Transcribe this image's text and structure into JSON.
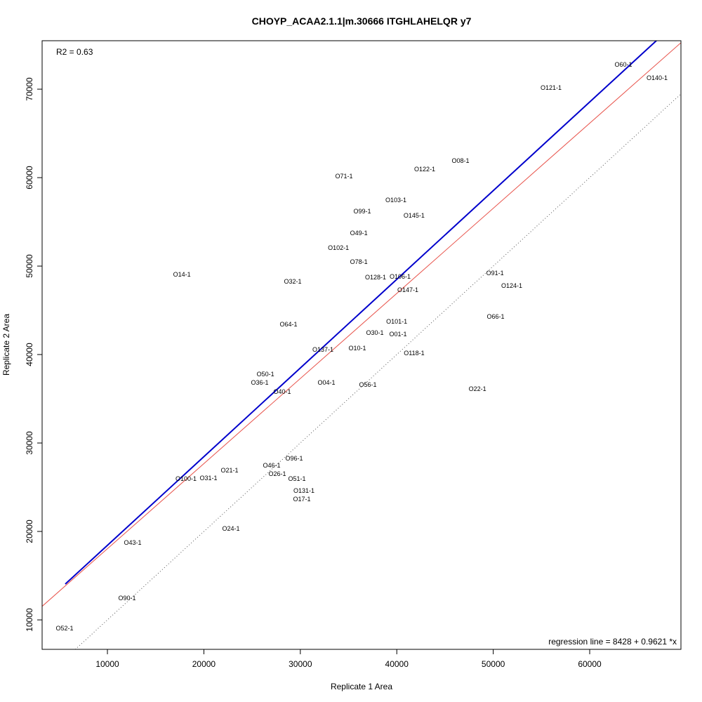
{
  "chart_data": {
    "type": "scatter",
    "title": "CHOYP_ACAA2.1.1|m.30666 ITGHLAHELQR y7",
    "xlabel": "Replicate 1 Area",
    "ylabel": "Replicate 2 Area",
    "xlim": [
      3230,
      69460
    ],
    "ylim": [
      6670,
      75480
    ],
    "xticks": [
      10000,
      20000,
      30000,
      40000,
      50000,
      60000
    ],
    "yticks": [
      10000,
      20000,
      30000,
      40000,
      50000,
      60000,
      70000
    ],
    "grid": false,
    "annotations": {
      "r2": "R2 = 0.63",
      "regression": "regression line = 8428 + 0.9621 *x"
    },
    "lines": [
      {
        "name": "regression",
        "color": "#e8524a",
        "style": "solid",
        "intercept": 8428,
        "slope": 0.9621
      },
      {
        "name": "identity",
        "color": "#555555",
        "style": "dotted",
        "intercept": 0,
        "slope": 1
      },
      {
        "name": "fit",
        "color": "#0000cc",
        "style": "solid",
        "x": [
          5630,
          66910
        ],
        "y": [
          14050,
          75480
        ]
      }
    ],
    "points": [
      {
        "label": "O60-1",
        "x": 63490,
        "y": 72780
      },
      {
        "label": "O140-1",
        "x": 66990,
        "y": 71270
      },
      {
        "label": "O121-1",
        "x": 56000,
        "y": 70160
      },
      {
        "label": "O08-1",
        "x": 46610,
        "y": 61900
      },
      {
        "label": "O122-1",
        "x": 42900,
        "y": 60950
      },
      {
        "label": "O71-1",
        "x": 34530,
        "y": 60160
      },
      {
        "label": "O103-1",
        "x": 39910,
        "y": 57460
      },
      {
        "label": "O145-1",
        "x": 41800,
        "y": 56590
      },
      {
        "label": "O99-1",
        "x": 36420,
        "y": 56190
      },
      {
        "label": "O49-1",
        "x": 36060,
        "y": 53730
      },
      {
        "label": "O102-1",
        "x": 33950,
        "y": 52060
      },
      {
        "label": "O78-1",
        "x": 36060,
        "y": 51350
      },
      {
        "label": "O128-1",
        "x": 37800,
        "y": 49600
      },
      {
        "label": "O14-1",
        "x": 17720,
        "y": 49050
      },
      {
        "label": "O106-1",
        "x": 40350,
        "y": 48810
      },
      {
        "label": "O32-1",
        "x": 29210,
        "y": 48250
      },
      {
        "label": "O91-1",
        "x": 50180,
        "y": 49210
      },
      {
        "label": "O124-1",
        "x": 51920,
        "y": 47780
      },
      {
        "label": "O147-1",
        "x": 41150,
        "y": 47300
      },
      {
        "label": "O64-1",
        "x": 28780,
        "y": 43410
      },
      {
        "label": "O66-1",
        "x": 50250,
        "y": 44290
      },
      {
        "label": "O101-1",
        "x": 39990,
        "y": 43730
      },
      {
        "label": "O01-1",
        "x": 40130,
        "y": 43180
      },
      {
        "label": "O30-1",
        "x": 37730,
        "y": 42460
      },
      {
        "label": "O137-1",
        "x": 32340,
        "y": 40560
      },
      {
        "label": "O10-1",
        "x": 35910,
        "y": 40710
      },
      {
        "label": "O118-1",
        "x": 41800,
        "y": 40160
      },
      {
        "label": "O36-1",
        "x": 25790,
        "y": 36830
      },
      {
        "label": "O50-1",
        "x": 26380,
        "y": 36900
      },
      {
        "label": "O04-1",
        "x": 32710,
        "y": 36830
      },
      {
        "label": "O56-1",
        "x": 37000,
        "y": 36590
      },
      {
        "label": "O40-1",
        "x": 28120,
        "y": 35790
      },
      {
        "label": "O22-1",
        "x": 48360,
        "y": 36110
      },
      {
        "label": "O96-1",
        "x": 29360,
        "y": 28250
      },
      {
        "label": "O46-1",
        "x": 27030,
        "y": 27460
      },
      {
        "label": "O26-1",
        "x": 27610,
        "y": 27380
      },
      {
        "label": "O21-1",
        "x": 22660,
        "y": 26900
      },
      {
        "label": "O100-1",
        "x": 18150,
        "y": 25950
      },
      {
        "label": "O31-1",
        "x": 20480,
        "y": 26030
      },
      {
        "label": "O51-1",
        "x": 29650,
        "y": 25950
      },
      {
        "label": "O131-1",
        "x": 30380,
        "y": 24600
      },
      {
        "label": "O17-1",
        "x": 30160,
        "y": 23650
      },
      {
        "label": "O24-1",
        "x": 22810,
        "y": 20320
      },
      {
        "label": "O43-1",
        "x": 12620,
        "y": 18730
      },
      {
        "label": "O90-1",
        "x": 12040,
        "y": 12460
      },
      {
        "label": "O52-1",
        "x": 5560,
        "y": 9050
      }
    ]
  }
}
